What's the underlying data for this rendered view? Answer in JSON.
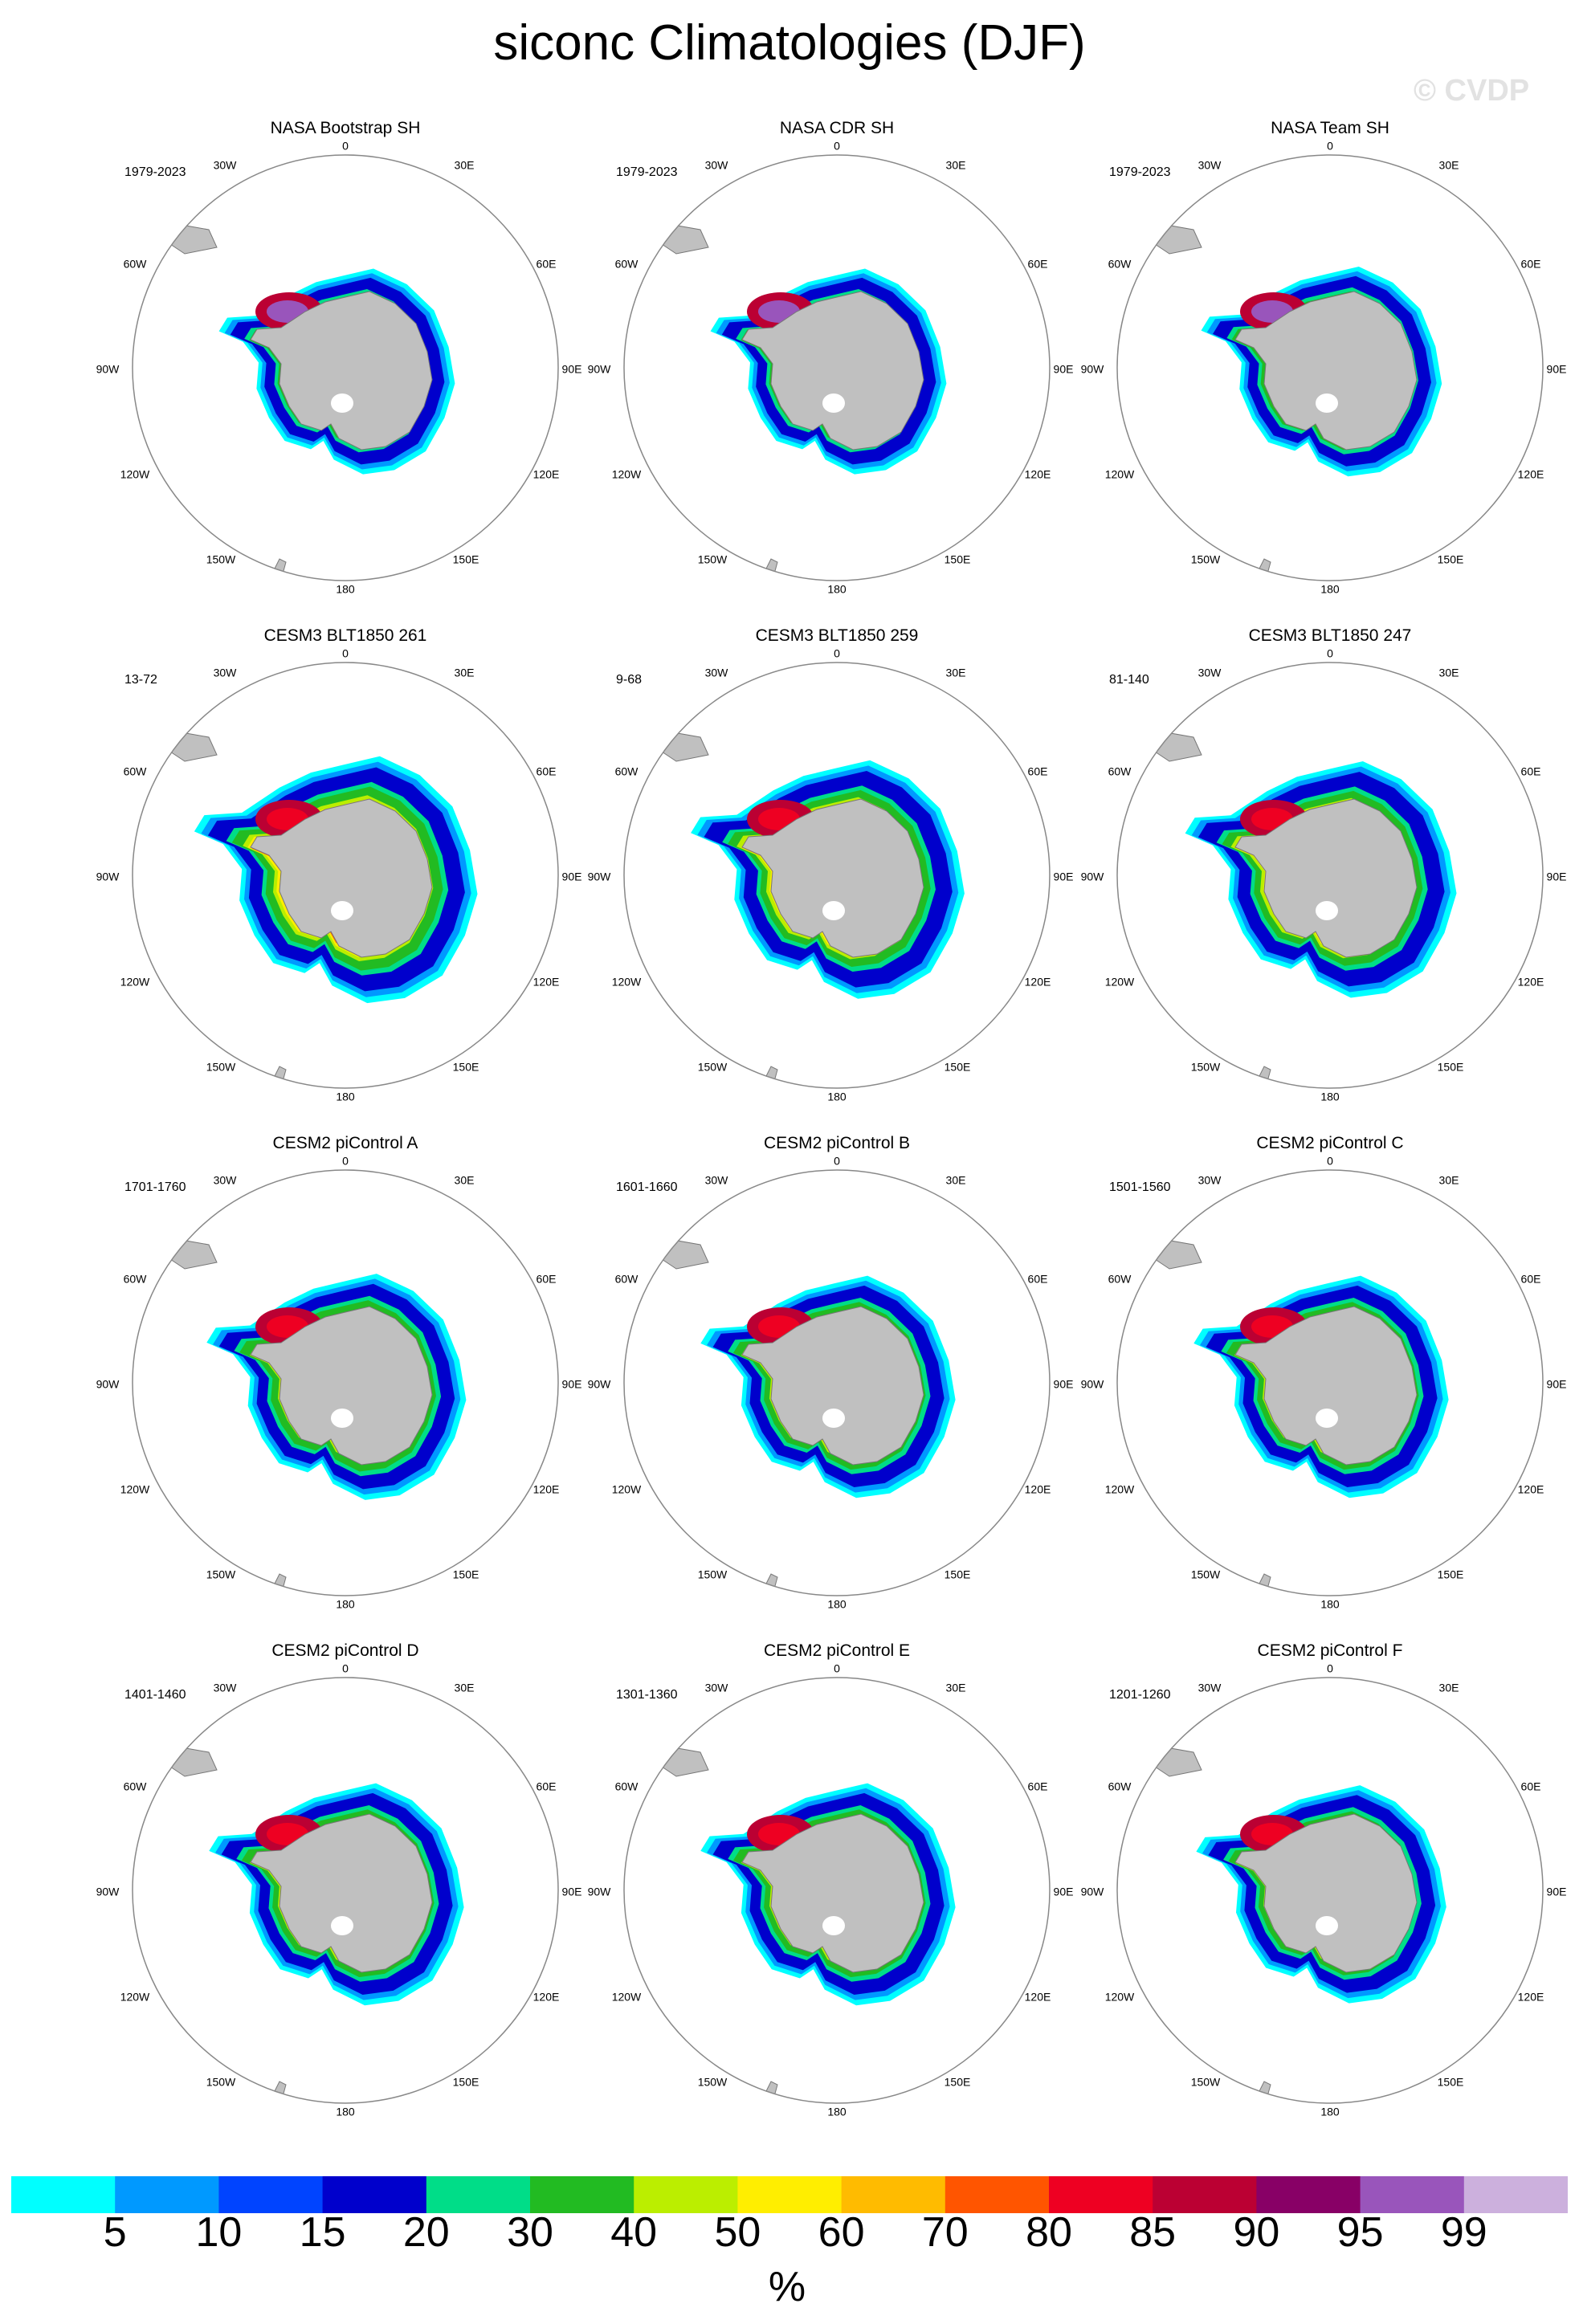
{
  "title": "siconc Climatologies (DJF)",
  "watermark": "© CVDP",
  "longitude_labels": {
    "lon_0": "0",
    "lon_30e": "30E",
    "lon_60e": "60E",
    "lon_90e": "90E",
    "lon_120e": "120E",
    "lon_150e": "150E",
    "lon_180": "180",
    "lon_150w": "150W",
    "lon_120w": "120W",
    "lon_90w": "90W",
    "lon_60w": "60W",
    "lon_30w": "30W"
  },
  "panels": [
    {
      "title": "NASA Bootstrap SH",
      "period": "1979-2023"
    },
    {
      "title": "NASA CDR SH",
      "period": "1979-2023"
    },
    {
      "title": "NASA Team SH",
      "period": "1979-2023"
    },
    {
      "title": "CESM3 BLT1850 261",
      "period": "13-72"
    },
    {
      "title": "CESM3 BLT1850 259",
      "period": "9-68"
    },
    {
      "title": "CESM3 BLT1850 247",
      "period": "81-140"
    },
    {
      "title": "CESM2 piControl A",
      "period": "1701-1760"
    },
    {
      "title": "CESM2 piControl B",
      "period": "1601-1660"
    },
    {
      "title": "CESM2 piControl C",
      "period": "1501-1560"
    },
    {
      "title": "CESM2 piControl D",
      "period": "1401-1460"
    },
    {
      "title": "CESM2 piControl E",
      "period": "1301-1360"
    },
    {
      "title": "CESM2 piControl F",
      "period": "1201-1260"
    }
  ],
  "colorbar": {
    "ticks": [
      "5",
      "10",
      "15",
      "20",
      "30",
      "40",
      "50",
      "60",
      "70",
      "80",
      "85",
      "90",
      "95",
      "99"
    ],
    "colors": [
      "#00ffff",
      "#0099ff",
      "#0044ff",
      "#0000cc",
      "#00dd88",
      "#22bb22",
      "#bbee00",
      "#ffee00",
      "#ffbb00",
      "#ff5500",
      "#ee0022",
      "#bb0033",
      "#880066",
      "#9955bb",
      "#ccb0dd"
    ],
    "unit": "%"
  },
  "map_colors": {
    "land": "#c0c0c0",
    "land_outline": "#777777",
    "circle": "#888888"
  }
}
